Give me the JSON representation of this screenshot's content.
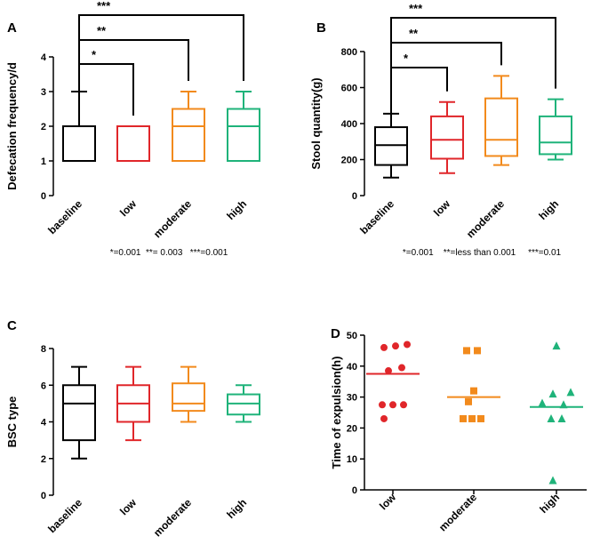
{
  "chart_data": [
    {
      "panel": "A",
      "type": "box",
      "ylabel": "Defecation frequency/d",
      "ylim": [
        0,
        4
      ],
      "yticks": [
        "0",
        "1",
        "2",
        "3",
        "4"
      ],
      "categories": [
        "baseline",
        "low",
        "moderate",
        "high"
      ],
      "colors": [
        "#000000",
        "#e0262a",
        "#f28a1c",
        "#1fb37a"
      ],
      "boxes": [
        {
          "min": 1,
          "q1": 1,
          "median": 2,
          "q3": 2,
          "max": 3
        },
        {
          "min": 1,
          "q1": 1,
          "median": 2,
          "q3": 2,
          "max": 2
        },
        {
          "min": 1,
          "q1": 1,
          "median": 2,
          "q3": 2.5,
          "max": 3
        },
        {
          "min": 1,
          "q1": 1,
          "median": 2,
          "q3": 2.5,
          "max": 3
        }
      ],
      "significance": [
        {
          "from": 0,
          "to": 1,
          "label": "*"
        },
        {
          "from": 0,
          "to": 2,
          "label": "**"
        },
        {
          "from": 0,
          "to": 3,
          "label": "***"
        }
      ],
      "footnote": "*=0.001  **= 0.003   ***=0.001"
    },
    {
      "panel": "B",
      "type": "box",
      "ylabel": "Stool quantity(g)",
      "ylim": [
        0,
        800
      ],
      "yticks": [
        "0",
        "200",
        "400",
        "600",
        "800"
      ],
      "categories": [
        "baseline",
        "low",
        "moderate",
        "high"
      ],
      "colors": [
        "#000000",
        "#e0262a",
        "#f28a1c",
        "#1fb37a"
      ],
      "boxes": [
        {
          "min": 100,
          "q1": 170,
          "median": 280,
          "q3": 380,
          "max": 455
        },
        {
          "min": 125,
          "q1": 205,
          "median": 310,
          "q3": 440,
          "max": 520
        },
        {
          "min": 170,
          "q1": 220,
          "median": 310,
          "q3": 540,
          "max": 665
        },
        {
          "min": 200,
          "q1": 230,
          "median": 295,
          "q3": 440,
          "max": 535
        }
      ],
      "significance": [
        {
          "from": 0,
          "to": 1,
          "label": "*"
        },
        {
          "from": 0,
          "to": 2,
          "label": "**"
        },
        {
          "from": 0,
          "to": 3,
          "label": "***"
        }
      ],
      "footnote": "*=0.001    **=less than 0.001     ***=0.01"
    },
    {
      "panel": "C",
      "type": "box",
      "ylabel": "BSC type",
      "ylim": [
        0,
        8
      ],
      "yticks": [
        "0",
        "2",
        "4",
        "6",
        "8"
      ],
      "categories": [
        "baseline",
        "low",
        "moderate",
        "high"
      ],
      "colors": [
        "#000000",
        "#e0262a",
        "#f28a1c",
        "#1fb37a"
      ],
      "boxes": [
        {
          "min": 2,
          "q1": 3,
          "median": 5,
          "q3": 6,
          "max": 7
        },
        {
          "min": 3,
          "q1": 4,
          "median": 5,
          "q3": 6,
          "max": 7
        },
        {
          "min": 4,
          "q1": 4.6,
          "median": 5,
          "q3": 6.1,
          "max": 7
        },
        {
          "min": 4,
          "q1": 4.4,
          "median": 5,
          "q3": 5.5,
          "max": 6
        }
      ]
    },
    {
      "panel": "D",
      "type": "scatter",
      "ylabel": "Time of expulsion(h)",
      "ylim": [
        0,
        50
      ],
      "yticks": [
        "0",
        "10",
        "20",
        "30",
        "40",
        "50"
      ],
      "categories": [
        "low",
        "moderate",
        "high"
      ],
      "colors": [
        "#e0262a",
        "#f28a1c",
        "#1fb37a"
      ],
      "markers": [
        "circle",
        "square",
        "triangle"
      ],
      "means": [
        37.5,
        30,
        26.8
      ],
      "points": [
        [
          {
            "dx": -10,
            "v": 46
          },
          {
            "dx": 3,
            "v": 46.5
          },
          {
            "dx": 16,
            "v": 47
          },
          {
            "dx": -5,
            "v": 38.5
          },
          {
            "dx": 10,
            "v": 39.5
          },
          {
            "dx": -12,
            "v": 27.5
          },
          {
            "dx": 0,
            "v": 27.5
          },
          {
            "dx": 12,
            "v": 27.5
          },
          {
            "dx": -10,
            "v": 23
          }
        ],
        [
          {
            "dx": -8,
            "v": 45
          },
          {
            "dx": 4,
            "v": 45
          },
          {
            "dx": 0,
            "v": 32
          },
          {
            "dx": -6,
            "v": 28.5
          },
          {
            "dx": -12,
            "v": 23
          },
          {
            "dx": -2,
            "v": 23
          },
          {
            "dx": 8,
            "v": 23
          }
        ],
        [
          {
            "dx": 0,
            "v": 46.5
          },
          {
            "dx": -4,
            "v": 31
          },
          {
            "dx": 16,
            "v": 31.5
          },
          {
            "dx": -16,
            "v": 28
          },
          {
            "dx": 8,
            "v": 27.5
          },
          {
            "dx": -6,
            "v": 23
          },
          {
            "dx": 6,
            "v": 23
          },
          {
            "dx": -4,
            "v": 3
          }
        ]
      ]
    }
  ]
}
